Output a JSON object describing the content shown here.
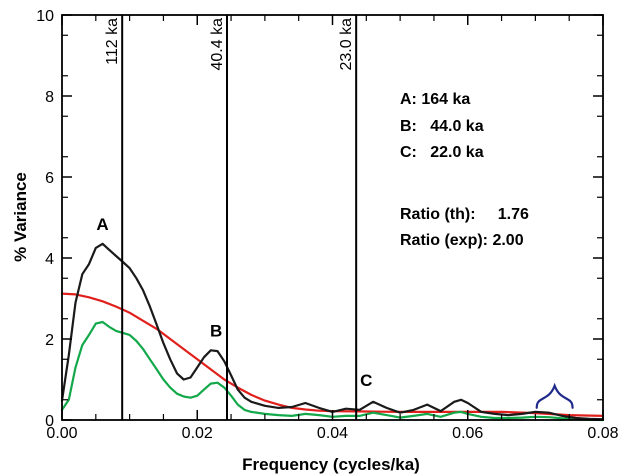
{
  "chart_data": {
    "type": "line",
    "xlabel": "Frequency (cycles/ka)",
    "ylabel": "% Variance",
    "xlim": [
      0,
      0.08
    ],
    "ylim": [
      0,
      10
    ],
    "x_ticks": [
      "0.00",
      "0.02",
      "0.04",
      "0.06",
      "0.08"
    ],
    "y_ticks": [
      "0",
      "2",
      "4",
      "6",
      "8",
      "10"
    ],
    "grid": false,
    "colors": {
      "black": "#1a1a1a",
      "red": "#e0201c",
      "green": "#13a84a",
      "bracket": "#1f2a8a"
    },
    "series": [
      {
        "color": "black",
        "x": [
          0.0,
          0.001,
          0.002,
          0.003,
          0.004,
          0.005,
          0.006,
          0.007,
          0.008,
          0.009,
          0.01,
          0.011,
          0.012,
          0.013,
          0.014,
          0.015,
          0.016,
          0.017,
          0.018,
          0.019,
          0.02,
          0.021,
          0.022,
          0.023,
          0.024,
          0.025,
          0.026,
          0.027,
          0.028,
          0.029,
          0.03,
          0.032,
          0.034,
          0.036,
          0.038,
          0.04,
          0.042,
          0.044,
          0.046,
          0.048,
          0.05,
          0.052,
          0.054,
          0.056,
          0.058,
          0.059,
          0.06,
          0.062,
          0.064,
          0.066,
          0.068,
          0.07,
          0.072,
          0.074,
          0.076,
          0.078,
          0.08
        ],
        "y": [
          0.48,
          1.6,
          2.9,
          3.6,
          3.85,
          4.25,
          4.35,
          4.2,
          4.05,
          3.9,
          3.75,
          3.5,
          3.2,
          2.8,
          2.35,
          1.9,
          1.5,
          1.15,
          1.0,
          1.05,
          1.3,
          1.55,
          1.72,
          1.7,
          1.45,
          1.1,
          0.75,
          0.55,
          0.45,
          0.4,
          0.35,
          0.3,
          0.32,
          0.42,
          0.3,
          0.2,
          0.28,
          0.25,
          0.45,
          0.3,
          0.18,
          0.25,
          0.38,
          0.22,
          0.45,
          0.5,
          0.42,
          0.2,
          0.15,
          0.12,
          0.15,
          0.2,
          0.18,
          0.1,
          0.05,
          0.03,
          0.02
        ]
      },
      {
        "color": "red",
        "x": [
          0.0,
          0.002,
          0.004,
          0.006,
          0.008,
          0.01,
          0.012,
          0.014,
          0.016,
          0.018,
          0.02,
          0.022,
          0.024,
          0.026,
          0.028,
          0.03,
          0.032,
          0.034,
          0.036,
          0.038,
          0.04,
          0.045,
          0.05,
          0.055,
          0.06,
          0.065,
          0.07,
          0.075,
          0.08
        ],
        "y": [
          3.12,
          3.1,
          3.03,
          2.93,
          2.8,
          2.65,
          2.45,
          2.25,
          2.0,
          1.75,
          1.5,
          1.25,
          1.0,
          0.8,
          0.62,
          0.48,
          0.38,
          0.3,
          0.26,
          0.23,
          0.22,
          0.21,
          0.2,
          0.2,
          0.2,
          0.2,
          0.17,
          0.12,
          0.1
        ]
      },
      {
        "color": "green",
        "x": [
          0.0,
          0.001,
          0.002,
          0.003,
          0.004,
          0.005,
          0.006,
          0.007,
          0.008,
          0.009,
          0.01,
          0.011,
          0.012,
          0.013,
          0.014,
          0.015,
          0.016,
          0.017,
          0.018,
          0.019,
          0.02,
          0.021,
          0.022,
          0.023,
          0.024,
          0.025,
          0.026,
          0.027,
          0.028,
          0.03,
          0.032,
          0.034,
          0.036,
          0.038,
          0.04,
          0.042,
          0.044,
          0.046,
          0.048,
          0.05,
          0.052,
          0.054,
          0.056,
          0.058,
          0.059,
          0.06,
          0.062,
          0.064,
          0.066,
          0.068,
          0.07,
          0.072,
          0.074,
          0.076,
          0.078,
          0.08
        ],
        "y": [
          0.25,
          0.5,
          1.3,
          1.85,
          2.1,
          2.38,
          2.42,
          2.3,
          2.2,
          2.15,
          2.1,
          1.95,
          1.75,
          1.5,
          1.25,
          1.0,
          0.8,
          0.65,
          0.58,
          0.55,
          0.6,
          0.75,
          0.9,
          0.92,
          0.8,
          0.6,
          0.38,
          0.25,
          0.2,
          0.15,
          0.12,
          0.1,
          0.15,
          0.12,
          0.08,
          0.1,
          0.1,
          0.18,
          0.12,
          0.06,
          0.1,
          0.15,
          0.08,
          0.18,
          0.2,
          0.15,
          0.08,
          0.05,
          0.05,
          0.06,
          0.08,
          0.07,
          0.04,
          0.02,
          0.01,
          0.0
        ]
      }
    ],
    "vertical_lines": [
      {
        "x": 0.0089,
        "label": "112 ka"
      },
      {
        "x": 0.0244,
        "label": "40.4 ka"
      },
      {
        "x": 0.0435,
        "label": "23.0 ka"
      }
    ],
    "peak_labels": [
      {
        "text": "A",
        "x": 0.006,
        "y": 4.35
      },
      {
        "text": "B",
        "x": 0.0228,
        "y": 1.72
      },
      {
        "text": "C",
        "x": 0.045,
        "y": 0.5
      }
    ],
    "info": {
      "line_a": "A: 164 ka",
      "line_b": "B:   44.0 ka",
      "line_c": "C:   22.0 ka",
      "ratio_th": "Ratio (th):     1.76",
      "ratio_exp": "Ratio (exp): 2.00"
    },
    "bracket": {
      "x_start": 0.0702,
      "x_end": 0.0755,
      "y": 0.5
    }
  }
}
